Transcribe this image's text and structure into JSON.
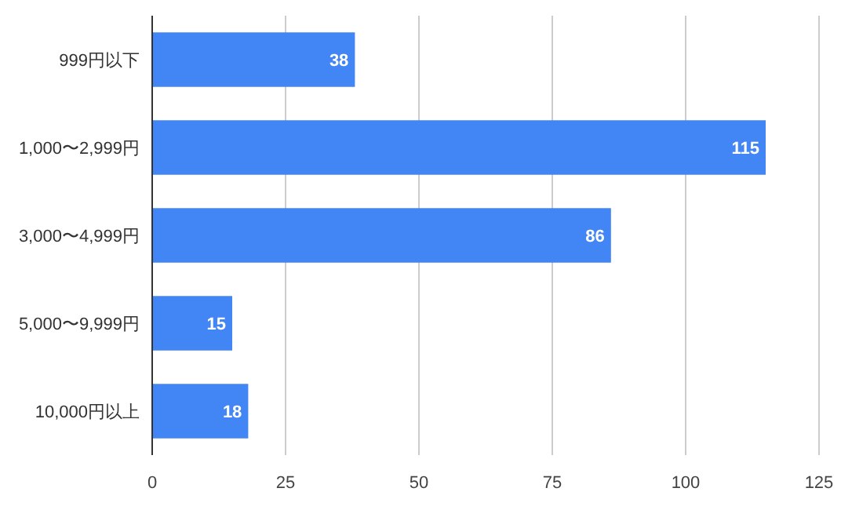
{
  "chart_data": {
    "type": "bar",
    "orientation": "horizontal",
    "categories": [
      "999円以下",
      "1,000〜2,999円",
      "3,000〜4,999円",
      "5,000〜9,999円",
      "10,000円以上"
    ],
    "values": [
      38,
      115,
      86,
      15,
      18
    ],
    "color": "#4285f4",
    "xlim": [
      0,
      125
    ],
    "xticks": [
      0,
      25,
      50,
      75,
      100,
      125
    ],
    "grid": "x",
    "data_labels": true
  }
}
